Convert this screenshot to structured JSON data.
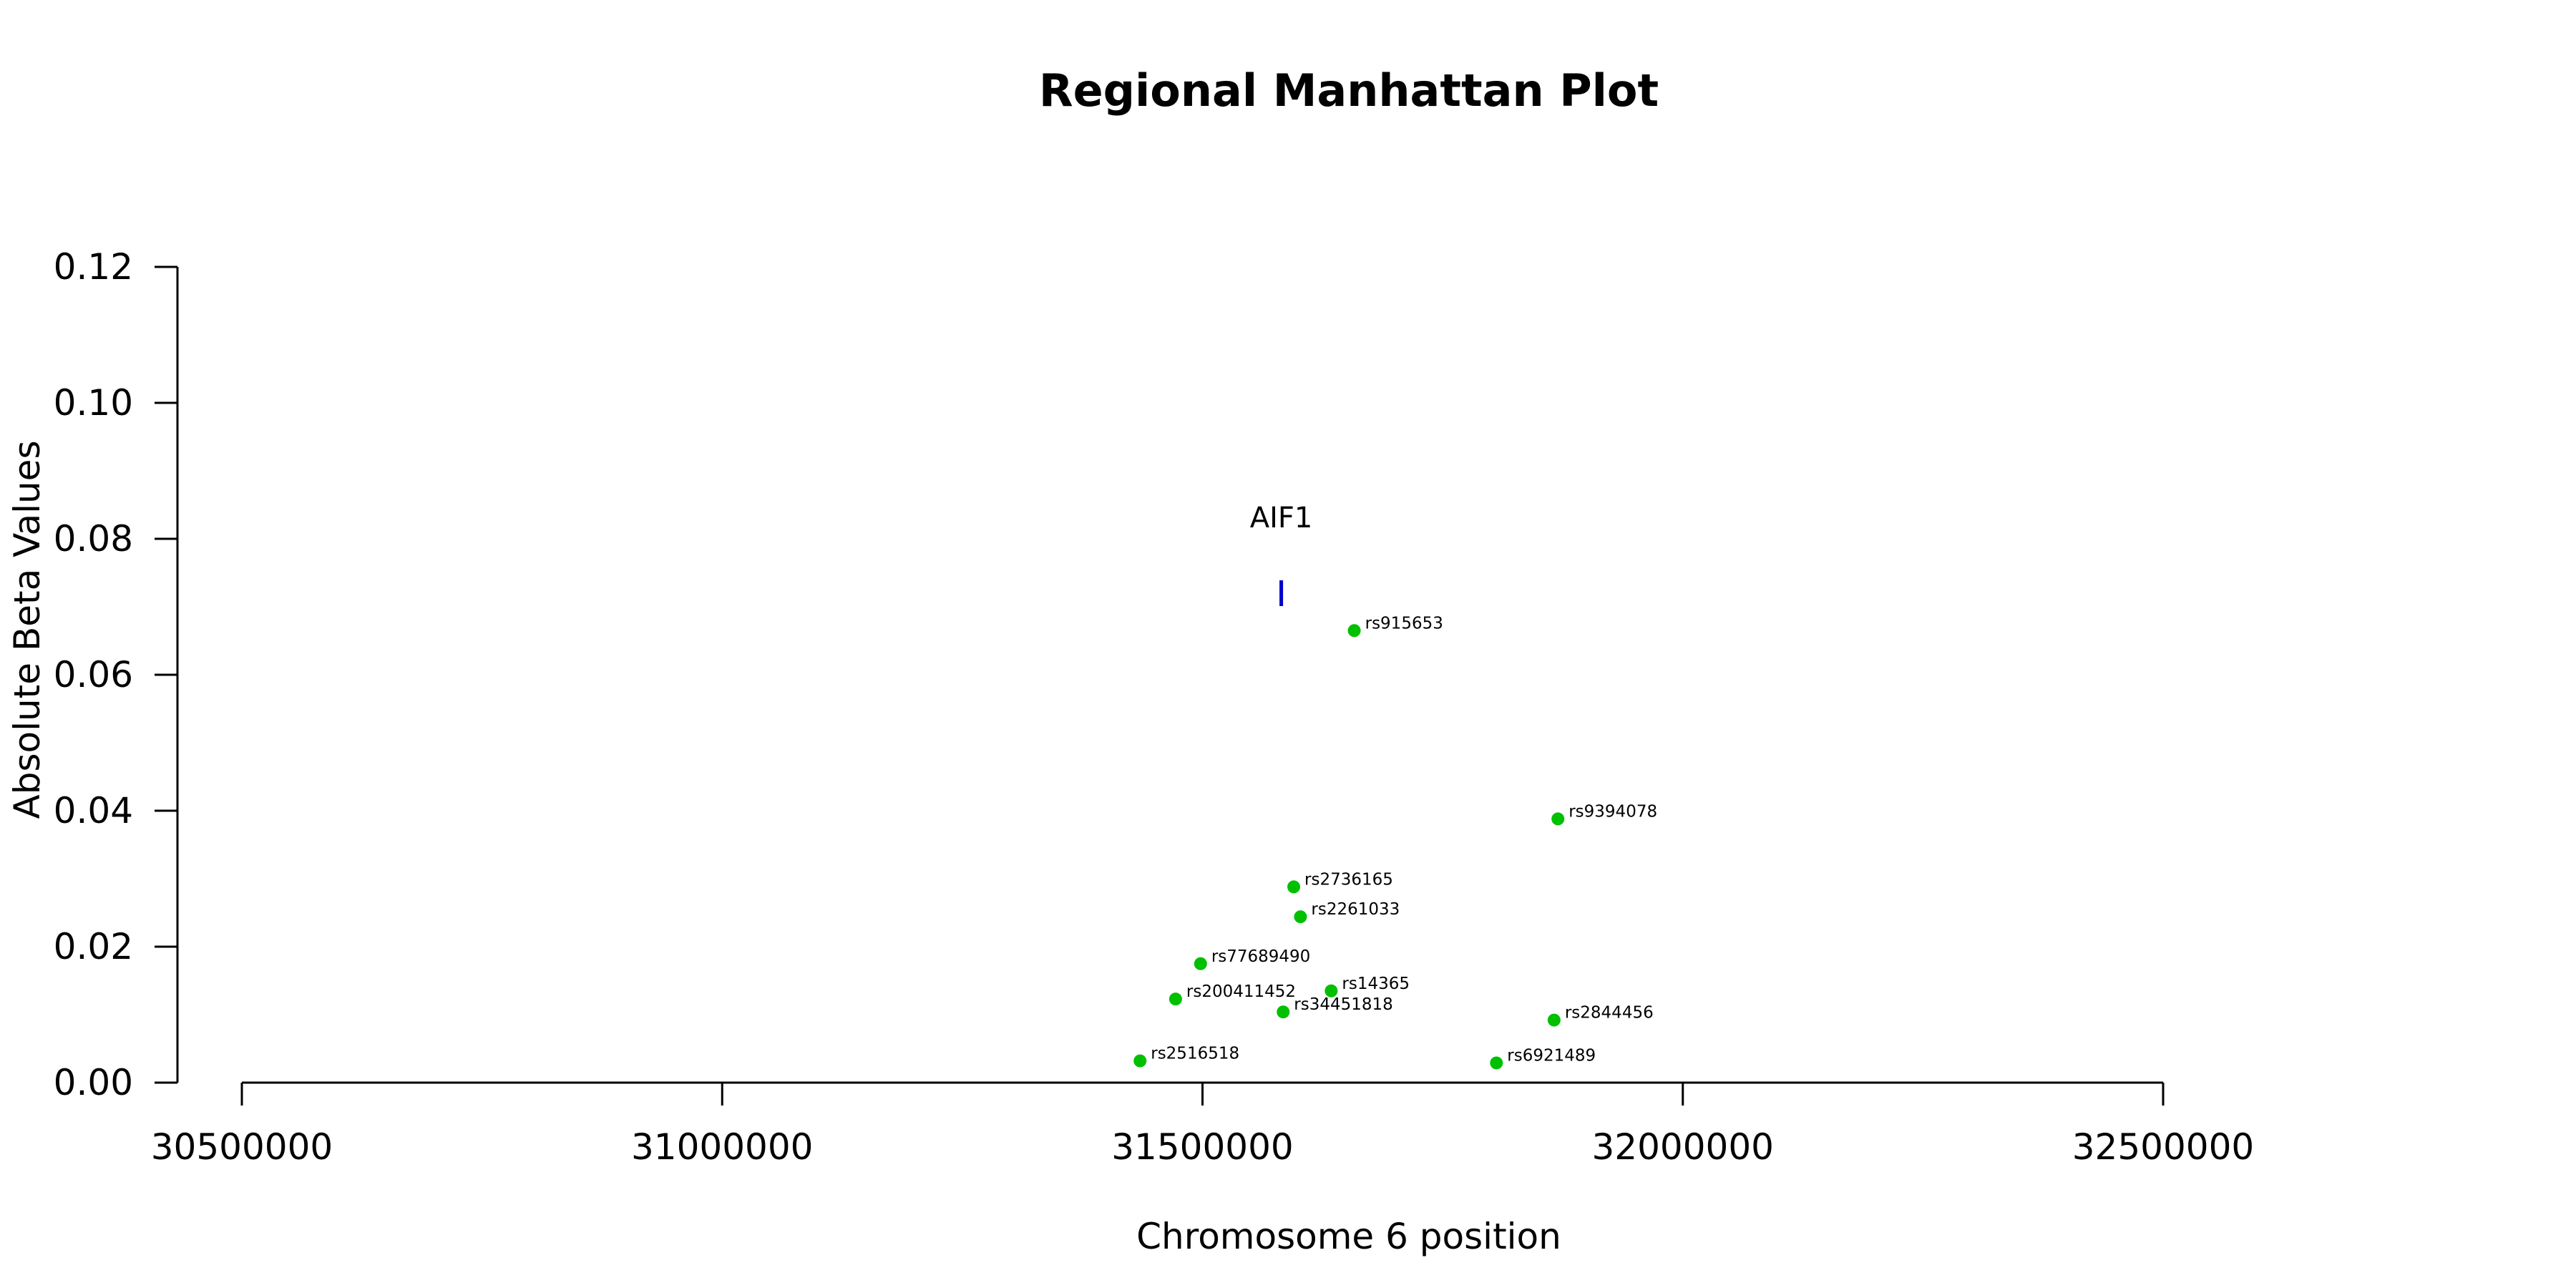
{
  "chart_data": {
    "type": "scatter",
    "title": "Regional Manhattan Plot",
    "xlabel": "Chromosome 6 position",
    "ylabel": "Absolute Beta Values",
    "xlim": [
      30500000,
      32500000
    ],
    "ylim": [
      0,
      0.12
    ],
    "x_ticks": [
      30500000,
      31000000,
      31500000,
      32000000,
      32500000
    ],
    "x_tick_labels": [
      "30500000",
      "31000000",
      "31500000",
      "32000000",
      "32500000"
    ],
    "y_ticks": [
      0,
      0.02,
      0.04,
      0.06,
      0.08,
      0.1,
      0.12
    ],
    "y_tick_labels": [
      "0.00",
      "0.02",
      "0.04",
      "0.06",
      "0.08",
      "0.10",
      "0.12"
    ],
    "point_color": "#00C000",
    "gene_color": "#0000CC",
    "genes": [
      {
        "name": "AIF1",
        "position": 31582000,
        "y": 0.072
      }
    ],
    "points": [
      {
        "label": "rs915653",
        "x": 31658000,
        "y": 0.0665
      },
      {
        "label": "rs9394078",
        "x": 31870000,
        "y": 0.0388
      },
      {
        "label": "rs2736165",
        "x": 31595000,
        "y": 0.0288
      },
      {
        "label": "rs2261033",
        "x": 31602000,
        "y": 0.0244
      },
      {
        "label": "rs77689490",
        "x": 31498000,
        "y": 0.0175
      },
      {
        "label": "rs14365",
        "x": 31634000,
        "y": 0.0135
      },
      {
        "label": "rs200411452",
        "x": 31472000,
        "y": 0.0123
      },
      {
        "label": "rs34451818",
        "x": 31584000,
        "y": 0.0104
      },
      {
        "label": "rs2844456",
        "x": 31866000,
        "y": 0.0092
      },
      {
        "label": "rs2516518",
        "x": 31435000,
        "y": 0.0032
      },
      {
        "label": "rs6921489",
        "x": 31806000,
        "y": 0.0029
      }
    ]
  }
}
